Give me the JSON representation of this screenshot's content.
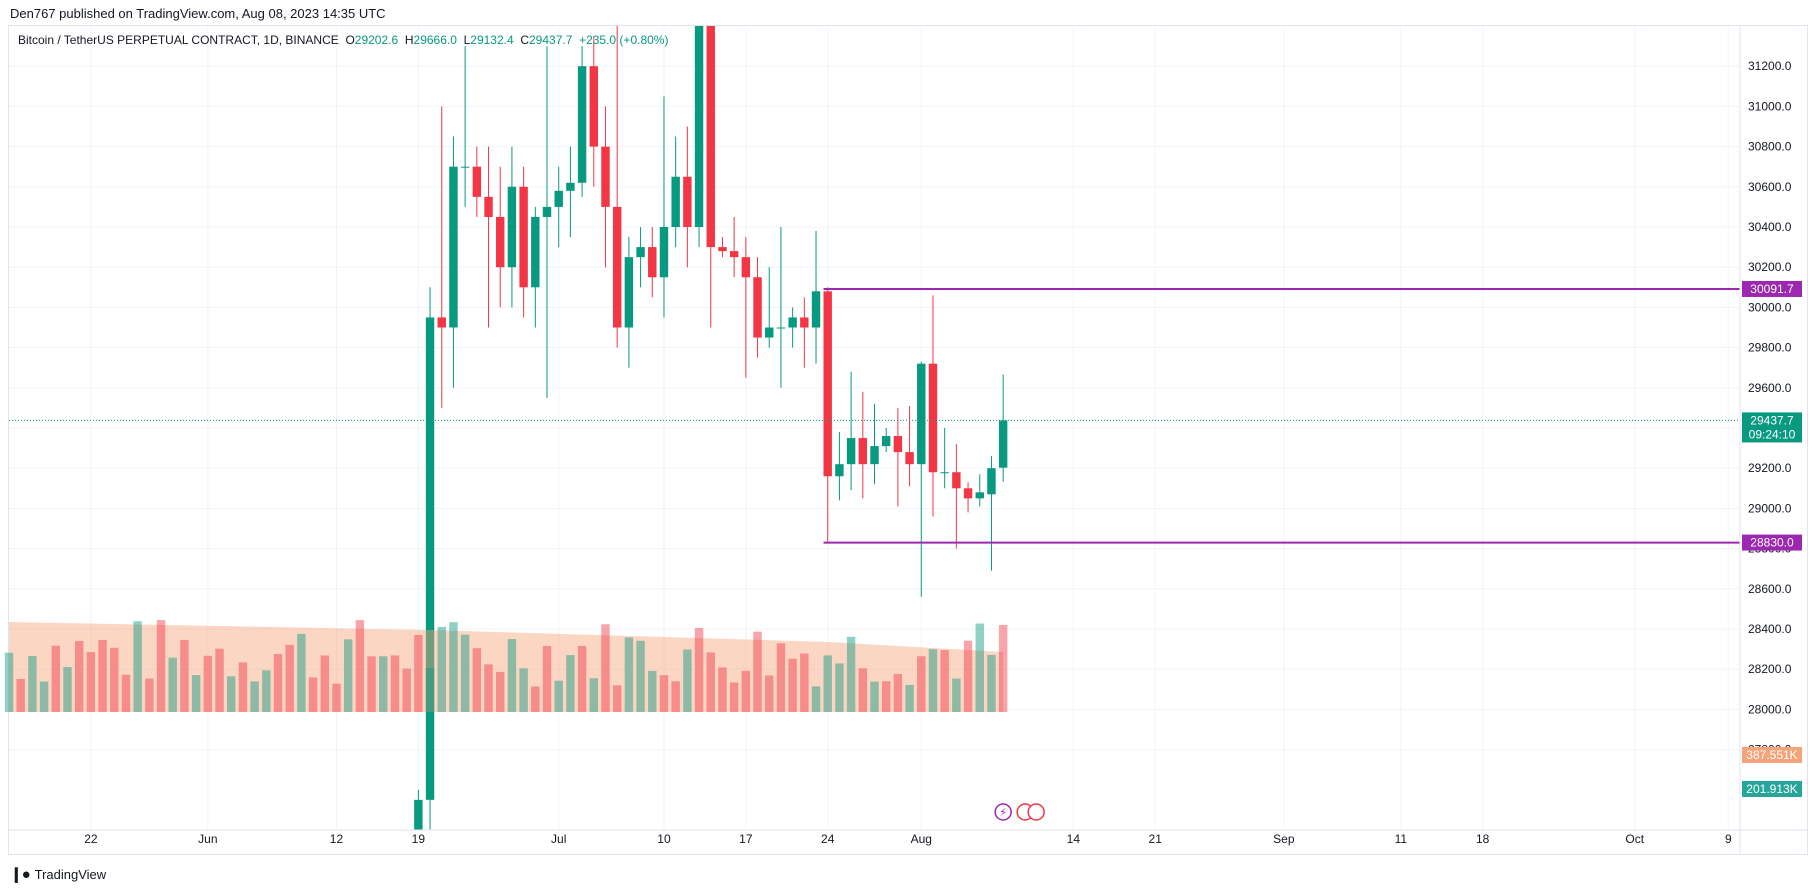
{
  "header": {
    "published": "Den767 published on TradingView.com, Aug 08, 2023 14:35 UTC"
  },
  "legend": {
    "symbol": "Bitcoin / TetherUS PERPETUAL CONTRACT, 1D, BINANCE",
    "o_label": "O",
    "o": "29202.6",
    "h_label": "H",
    "h": "29666.0",
    "l_label": "L",
    "l": "29132.4",
    "c_label": "C",
    "c": "29437.7",
    "change": "+235.0 (+0.80%)"
  },
  "footer": {
    "brand": "TradingView"
  },
  "colors": {
    "up": "#089981",
    "down": "#f23645",
    "level": "#9c27b0",
    "vol_ma": "#f7a379",
    "bg": "#ffffff",
    "grid": "#f0f3fa"
  },
  "chart_data": {
    "type": "candlestick",
    "ylim": [
      27400,
      31400
    ],
    "y_ticks": [
      27800,
      28000,
      28200,
      28400,
      28600,
      28800,
      29000,
      29200,
      29400,
      29600,
      29800,
      30000,
      30200,
      30400,
      30600,
      30800,
      31000,
      31200
    ],
    "y_tick_labels": [
      "27800.0",
      "28000.0",
      "28200.0",
      "28400.0",
      "28600.0",
      "28800.0",
      "29000.0",
      "29200.0",
      "29400.0",
      "29600.0",
      "29800.0",
      "30000.0",
      "30200.0",
      "30400.0",
      "30600.0",
      "30800.0",
      "31000.0",
      "31200.0"
    ],
    "x_labels": [
      {
        "date": "2023-05-22",
        "label": "22"
      },
      {
        "date": "2023-06-01",
        "label": "Jun"
      },
      {
        "date": "2023-06-12",
        "label": "12"
      },
      {
        "date": "2023-06-19",
        "label": "19"
      },
      {
        "date": "2023-07-01",
        "label": "Jul"
      },
      {
        "date": "2023-07-10",
        "label": "10"
      },
      {
        "date": "2023-07-17",
        "label": "17"
      },
      {
        "date": "2023-07-24",
        "label": "24"
      },
      {
        "date": "2023-08-01",
        "label": "Aug"
      },
      {
        "date": "2023-08-14",
        "label": "14"
      },
      {
        "date": "2023-08-21",
        "label": "21"
      },
      {
        "date": "2023-09-01",
        "label": "Sep"
      },
      {
        "date": "2023-09-11",
        "label": "11"
      },
      {
        "date": "2023-09-18",
        "label": "18"
      },
      {
        "date": "2023-10-01",
        "label": "Oct"
      },
      {
        "date": "2023-10-09",
        "label": "9"
      }
    ],
    "x_range": [
      "2023-05-15",
      "2023-10-10"
    ],
    "candles": [
      {
        "date": "2023-07-24",
        "o": 30080,
        "h": 30100,
        "l": 28830,
        "c": 29160
      },
      {
        "date": "2023-07-25",
        "o": 29160,
        "h": 29380,
        "l": 29040,
        "c": 29220
      },
      {
        "date": "2023-07-26",
        "o": 29220,
        "h": 29680,
        "l": 29090,
        "c": 29350
      },
      {
        "date": "2023-07-27",
        "o": 29350,
        "h": 29580,
        "l": 29050,
        "c": 29220
      },
      {
        "date": "2023-07-28",
        "o": 29220,
        "h": 29520,
        "l": 29120,
        "c": 29310
      },
      {
        "date": "2023-07-29",
        "o": 29310,
        "h": 29400,
        "l": 29280,
        "c": 29360
      },
      {
        "date": "2023-07-30",
        "o": 29360,
        "h": 29500,
        "l": 29010,
        "c": 29280
      },
      {
        "date": "2023-07-31",
        "o": 29280,
        "h": 29510,
        "l": 29110,
        "c": 29220
      },
      {
        "date": "2023-08-01",
        "o": 29220,
        "h": 29730,
        "l": 28560,
        "c": 29720
      },
      {
        "date": "2023-08-02",
        "o": 29720,
        "h": 30060,
        "l": 28960,
        "c": 29180
      },
      {
        "date": "2023-08-03",
        "o": 29180,
        "h": 29400,
        "l": 29100,
        "c": 29180
      },
      {
        "date": "2023-08-04",
        "o": 29180,
        "h": 29320,
        "l": 28800,
        "c": 29100
      },
      {
        "date": "2023-08-05",
        "o": 29100,
        "h": 29130,
        "l": 28980,
        "c": 29050
      },
      {
        "date": "2023-08-06",
        "o": 29050,
        "h": 29170,
        "l": 29010,
        "c": 29080
      },
      {
        "date": "2023-08-07",
        "o": 29070,
        "h": 29260,
        "l": 28690,
        "c": 29200
      },
      {
        "date": "2023-08-08",
        "o": 29202.6,
        "h": 29666.0,
        "l": 29132.4,
        "c": 29437.7
      }
    ],
    "volume": {
      "last_label": "201.913K",
      "ma_label": "387.551K"
    },
    "levels": [
      {
        "value": 30091.7,
        "label": "30091.7",
        "from": "2023-07-24"
      },
      {
        "value": 28830.0,
        "label": "28830.0",
        "from": "2023-07-24"
      }
    ],
    "last_price": {
      "value": 29437.7,
      "label": "29437.7",
      "countdown": "09:24:10"
    }
  }
}
